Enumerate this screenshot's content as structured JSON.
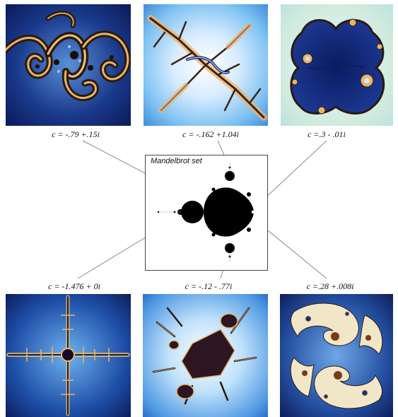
{
  "mandelbrot": {
    "title": "Mandelbrot set"
  },
  "julia_sets": [
    {
      "id": "tl",
      "caption": "c = -.79 +.15i",
      "c_re": -0.79,
      "c_im": 0.15
    },
    {
      "id": "tc",
      "caption": "c = -.162 +1.04i",
      "c_re": -0.162,
      "c_im": 1.04
    },
    {
      "id": "tr",
      "caption": "c =.3 - .01i",
      "c_re": 0.3,
      "c_im": -0.01
    },
    {
      "id": "bl",
      "caption": "c = -1.476 + 0i",
      "c_re": -1.476,
      "c_im": 0
    },
    {
      "id": "bc",
      "caption": "c = -.12 - .77i",
      "c_re": -0.12,
      "c_im": -0.77
    },
    {
      "id": "br",
      "caption": "c =.28 +.008i",
      "c_re": 0.28,
      "c_im": 0.008
    }
  ],
  "colors": {
    "deep_blue": "#0d1f63",
    "light_blue": "#7ec2f2",
    "edge_orange": "#e8a35a",
    "set_black": "#000000",
    "connector_gray": "#8a8a8a"
  }
}
